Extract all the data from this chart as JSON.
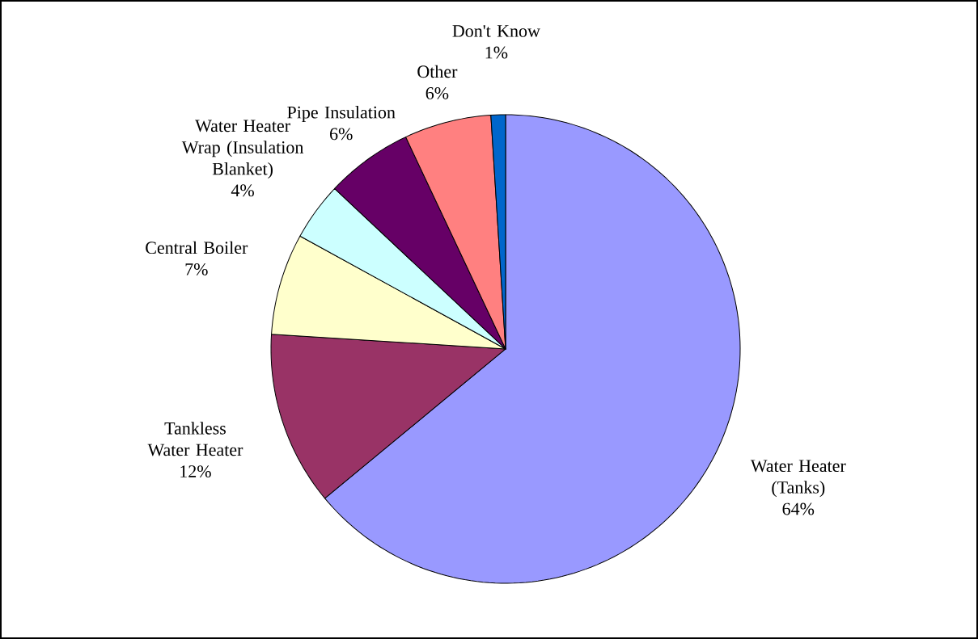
{
  "chart_data": {
    "type": "pie",
    "categories": [
      "Water Heater (Tanks)",
      "Tankless Water Heater",
      "Central Boiler",
      "Water Heater Wrap (Insulation Blanket)",
      "Pipe Insulation",
      "Other",
      "Don't Know"
    ],
    "values": [
      64,
      12,
      7,
      4,
      6,
      6,
      1
    ],
    "colors": [
      "#9999ff",
      "#993366",
      "#ffffcc",
      "#ccffff",
      "#660066",
      "#ff8080",
      "#0066cc"
    ],
    "value_labels": [
      "64%",
      "12%",
      "7%",
      "4%",
      "6%",
      "6%",
      "1%"
    ]
  }
}
